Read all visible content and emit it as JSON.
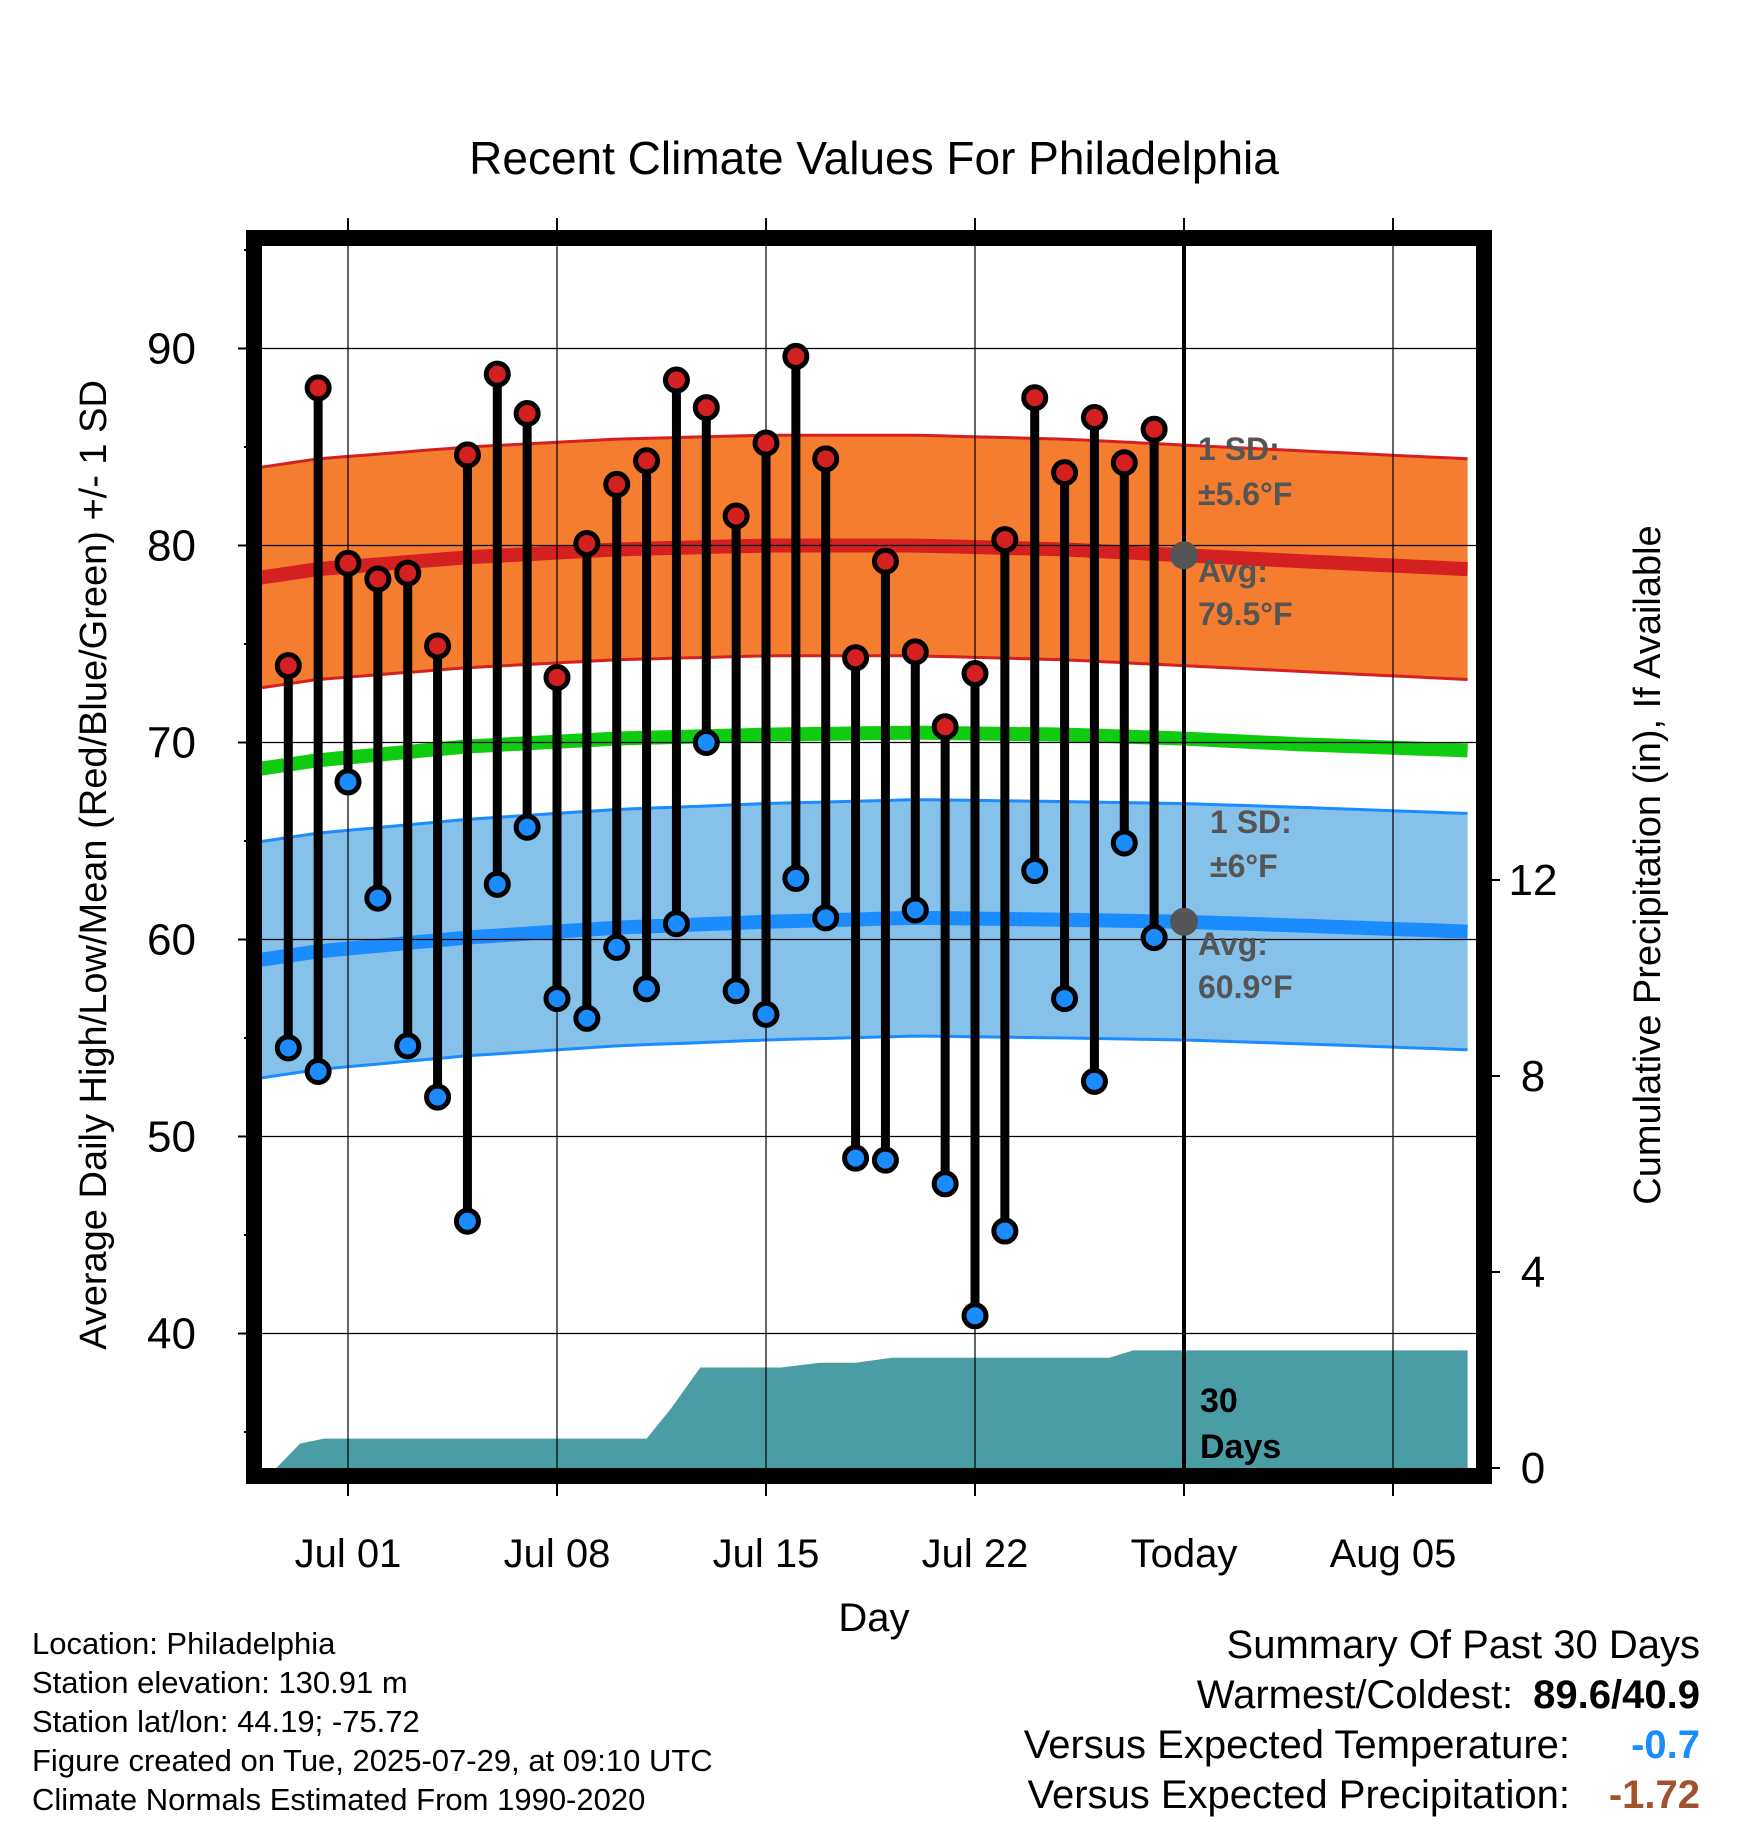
{
  "chart_data": {
    "type": "line",
    "title": "Recent Climate Values For Philadelphia",
    "xlabel": "Day",
    "ylabel": "Average Daily High/Low/Mean (Red/Blue/Green) +/- 1 SD",
    "y2label": "Cumulative Precipitation (in), If Available",
    "ylim": [
      33.5,
      95
    ],
    "y2lim": [
      0,
      30
    ],
    "y_ticks": [
      "40",
      "50",
      "60",
      "70",
      "80",
      "90"
    ],
    "y2_ticks": [
      "0",
      "4",
      "8",
      "12"
    ],
    "x_ticks": [
      "Jul 01",
      "Jul 08",
      "Jul 15",
      "Jul 22",
      "Today",
      "Aug 05"
    ],
    "x_tick_days": [
      1,
      8,
      15,
      22,
      29,
      36
    ],
    "x_range_days": [
      -2.7,
      38.5
    ],
    "today_day": 29,
    "grid": true,
    "days": [
      -1,
      0,
      1,
      2,
      3,
      4,
      5,
      6,
      7,
      8,
      9,
      10,
      11,
      12,
      13,
      14,
      15,
      16,
      17,
      18,
      19,
      20,
      21,
      22,
      23,
      24,
      25,
      26,
      27,
      28
    ],
    "highs": [
      73.9,
      88.0,
      79.1,
      78.3,
      78.6,
      74.9,
      84.6,
      88.7,
      86.7,
      73.3,
      80.1,
      83.1,
      84.3,
      88.4,
      87.0,
      81.5,
      85.2,
      89.6,
      84.4,
      74.3,
      79.2,
      74.6,
      70.8,
      73.5,
      80.3,
      87.5,
      83.7,
      86.5,
      84.2,
      85.9
    ],
    "lows": [
      54.5,
      53.3,
      68.0,
      62.1,
      54.6,
      52.0,
      45.7,
      62.8,
      65.7,
      57.0,
      56.0,
      59.6,
      57.5,
      60.8,
      70.0,
      57.4,
      56.2,
      63.1,
      61.1,
      48.9,
      48.8,
      61.5,
      47.6,
      40.9,
      45.2,
      63.5,
      57.0,
      52.8,
      64.9,
      60.1
    ],
    "normal_high": {
      "days": [
        -2.7,
        0,
        5,
        10,
        15,
        20,
        25,
        29,
        33,
        38.5
      ],
      "values": [
        78.2,
        78.8,
        79.4,
        79.8,
        80.0,
        80.0,
        79.8,
        79.5,
        79.2,
        78.8
      ]
    },
    "normal_low": {
      "days": [
        -2.7,
        0,
        5,
        10,
        15,
        20,
        25,
        29,
        33,
        38.5
      ],
      "values": [
        58.8,
        59.4,
        60.1,
        60.6,
        60.9,
        61.1,
        61.0,
        60.9,
        60.7,
        60.4
      ]
    },
    "normal_mean": {
      "days": [
        -2.7,
        0,
        5,
        10,
        15,
        20,
        25,
        29,
        33,
        38.5
      ],
      "values": [
        68.5,
        69.1,
        69.8,
        70.2,
        70.4,
        70.5,
        70.4,
        70.2,
        69.9,
        69.6
      ]
    },
    "high_sd": 5.6,
    "low_sd": 6.0,
    "precip_cumulative": {
      "days": [
        -1.4,
        -0.6,
        0.2,
        1.0,
        2,
        5,
        9,
        11,
        11.8,
        12.8,
        15.5,
        16.8,
        18,
        19.2,
        20.2,
        22,
        24,
        26.5,
        27.3,
        29,
        38.5
      ],
      "values": [
        0,
        0.5,
        0.6,
        0.6,
        0.6,
        0.6,
        0.6,
        0.6,
        1.2,
        2.05,
        2.05,
        2.15,
        2.15,
        2.25,
        2.25,
        2.25,
        2.25,
        2.25,
        2.4,
        2.4,
        2.4
      ]
    },
    "annotations": {
      "high_sd_label": "1 SD:",
      "high_sd_value": "±5.6°F",
      "high_avg_label": "Avg:",
      "high_avg_value": "79.5°F",
      "low_sd_label": "1 SD:",
      "low_sd_value": "±6°F",
      "low_avg_label": "Avg:",
      "low_avg_value": "60.9°F",
      "period_days": "30",
      "period_label": "Days"
    },
    "colors": {
      "high_band": "#f57d30",
      "high_line": "#d42020",
      "low_band": "#85c1e8",
      "low_line": "#1a8cff",
      "mean_line": "#10cc10",
      "precip": "#4a9ca5",
      "high_marker": "#d42020",
      "low_marker": "#1a8cff",
      "today_dot": "#555555"
    }
  },
  "info": {
    "location": "Location: Philadelphia",
    "elevation": "Station elevation: 130.91 m",
    "latlon": "Station lat/lon: 44.19; -75.72",
    "created": "Figure created on Tue, 2025-07-29, at 09:10 UTC",
    "normals": "Climate Normals Estimated From 1990-2020"
  },
  "summary": {
    "title": "Summary Of Past 30 Days",
    "warmest_coldest_label": "Warmest/Coldest:",
    "warmest_coldest_value": "89.6/40.9",
    "temp_label": "Versus Expected Temperature:",
    "temp_value": "-0.7",
    "temp_color": "#1a8cff",
    "precip_label": "Versus Expected Precipitation:",
    "precip_value": "-1.72",
    "precip_color": "#a0522d"
  }
}
